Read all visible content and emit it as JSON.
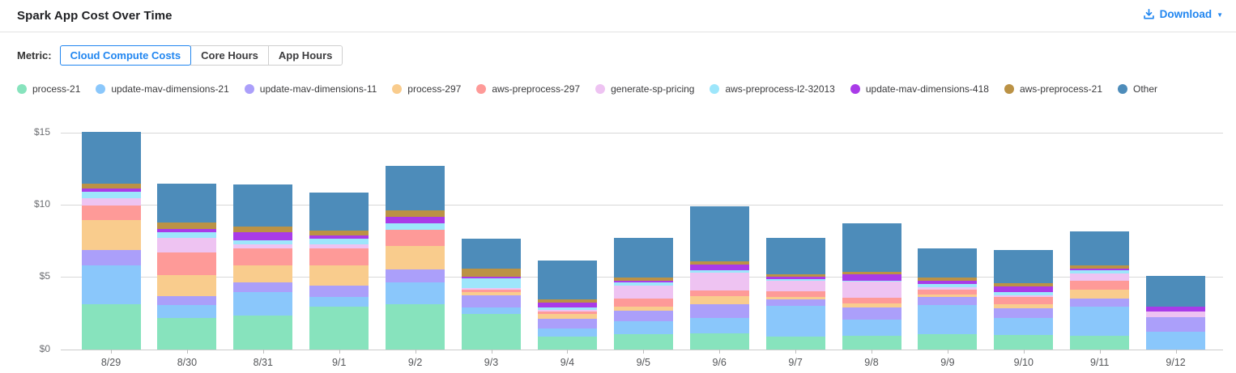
{
  "header": {
    "title": "Spark App Cost Over Time",
    "download_label": "Download"
  },
  "metric_selector": {
    "label": "Metric:",
    "options": [
      {
        "label": "Cloud Compute Costs",
        "selected": true
      },
      {
        "label": "Core Hours",
        "selected": false
      },
      {
        "label": "App Hours",
        "selected": false
      }
    ]
  },
  "colors": {
    "accent_blue": "#2186f0",
    "grid": "#d8d8d8",
    "axis_text": "#6b6d71"
  },
  "chart_data": {
    "type": "bar",
    "stacked": true,
    "title": "Spark App Cost Over Time",
    "xlabel": "",
    "ylabel": "",
    "ylim": [
      0,
      15
    ],
    "y_ticks": [
      {
        "label": "$0",
        "value": 0
      },
      {
        "label": "$5",
        "value": 5
      },
      {
        "label": "$10",
        "value": 10
      },
      {
        "label": "$15",
        "value": 15
      }
    ],
    "grid": true,
    "legend_position": "top",
    "categories": [
      "8/29",
      "8/30",
      "8/31",
      "9/1",
      "9/2",
      "9/3",
      "9/4",
      "9/5",
      "9/6",
      "9/7",
      "9/8",
      "9/9",
      "9/10",
      "9/11",
      "9/12"
    ],
    "series": [
      {
        "name": "process-21",
        "color": "#87e3bd",
        "values": [
          3.1,
          2.18,
          2.35,
          2.97,
          3.12,
          2.42,
          0.86,
          1.05,
          1.09,
          0.86,
          0.9,
          1.03,
          1.0,
          0.9,
          0.0
        ]
      },
      {
        "name": "update-mav-dimensions-21",
        "color": "#8ac7fb",
        "values": [
          2.73,
          0.85,
          1.62,
          0.66,
          1.5,
          0.49,
          0.55,
          0.88,
          1.07,
          2.14,
          1.17,
          2.03,
          1.18,
          2.07,
          1.18
        ]
      },
      {
        "name": "update-mav-dimensions-11",
        "color": "#ab9ffa",
        "values": [
          1.05,
          0.65,
          0.64,
          0.75,
          0.92,
          0.81,
          0.71,
          0.75,
          0.94,
          0.43,
          0.81,
          0.56,
          0.66,
          0.51,
          1.03
        ]
      },
      {
        "name": "process-297",
        "color": "#f9cc8d",
        "values": [
          2.05,
          1.45,
          1.18,
          1.41,
          1.62,
          0.21,
          0.34,
          0.28,
          0.56,
          0.19,
          0.28,
          0.19,
          0.26,
          0.62,
          0.0
        ]
      },
      {
        "name": "aws-preprocess-297",
        "color": "#fe9a98",
        "values": [
          1.03,
          1.56,
          1.22,
          1.22,
          1.11,
          0.17,
          0.17,
          0.56,
          0.38,
          0.41,
          0.43,
          0.34,
          0.53,
          0.62,
          0.0
        ]
      },
      {
        "name": "generate-sp-pricing",
        "color": "#eec3f2",
        "values": [
          0.49,
          1.02,
          0.24,
          0.28,
          0.0,
          0.13,
          0.09,
          0.9,
          1.24,
          0.71,
          1.07,
          0.13,
          0.09,
          0.51,
          0.41
        ]
      },
      {
        "name": "aws-preprocess-l2-32013",
        "color": "#9de6fb",
        "values": [
          0.47,
          0.41,
          0.32,
          0.34,
          0.43,
          0.66,
          0.19,
          0.19,
          0.19,
          0.13,
          0.09,
          0.24,
          0.24,
          0.23,
          0.0
        ]
      },
      {
        "name": "update-mav-dimensions-418",
        "color": "#a93be8",
        "values": [
          0.19,
          0.21,
          0.53,
          0.23,
          0.47,
          0.15,
          0.3,
          0.13,
          0.38,
          0.15,
          0.43,
          0.23,
          0.38,
          0.15,
          0.32
        ]
      },
      {
        "name": "aws-preprocess-21",
        "color": "#bb9245",
        "values": [
          0.38,
          0.47,
          0.41,
          0.37,
          0.47,
          0.56,
          0.23,
          0.23,
          0.23,
          0.19,
          0.19,
          0.23,
          0.23,
          0.19,
          0.0
        ]
      },
      {
        "name": "Other",
        "color": "#4d8cba",
        "values": [
          3.55,
          2.68,
          2.93,
          2.65,
          3.05,
          2.07,
          2.71,
          2.74,
          3.82,
          2.5,
          3.36,
          2.03,
          2.29,
          2.39,
          2.15
        ]
      }
    ]
  }
}
